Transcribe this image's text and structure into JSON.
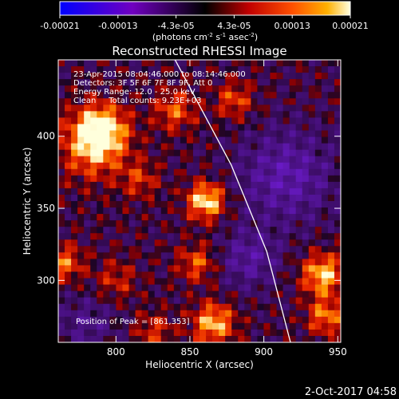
{
  "chart_data": {
    "type": "heatmap",
    "title": "Reconstructed RHESSI Image",
    "xlabel": "Heliocentric X (arcsec)",
    "ylabel": "Heliocentric Y (arcsec)",
    "xlim": [
      761,
      952
    ],
    "ylim": [
      257,
      453
    ],
    "x_ticks": [
      800,
      850,
      900,
      950
    ],
    "y_ticks": [
      300,
      350,
      400
    ],
    "colorbar": {
      "ticks": [
        "-0.00021",
        "-0.00013",
        "-4.3e-05",
        "4.3e-05",
        "0.00013",
        "0.00021"
      ],
      "range": [
        -0.00021,
        0.00021
      ],
      "units_label": "(photons cm",
      "units_parts": [
        "(photons cm",
        "-2",
        " s",
        "-1",
        " asec",
        "-2",
        ")"
      ]
    },
    "annotations": [
      "23-Apr-2015 08:04:46.000 to 08:14:46.000",
      "Detectors: 3F 5F 6F 7F 8F 9F, Att 0",
      "Energy Range: 12.0 - 25.0 keV",
      "Clean     Total counts: 9.23E+03"
    ],
    "peak_text": "Position of Peak = [861,353]",
    "peak": [
      861,
      353
    ],
    "limb": [
      [
        840,
        453
      ],
      [
        878,
        380
      ],
      [
        902,
        320
      ],
      [
        918,
        257
      ]
    ],
    "blobs": [
      {
        "x": 861,
        "y": 355,
        "r": 9,
        "v": 0.00021
      },
      {
        "x": 790,
        "y": 405,
        "r": 12,
        "v": 0.00019
      },
      {
        "x": 784,
        "y": 392,
        "r": 16,
        "v": 0.00014
      },
      {
        "x": 840,
        "y": 418,
        "r": 10,
        "v": 0.00012
      },
      {
        "x": 816,
        "y": 370,
        "r": 9,
        "v": 9e-05
      },
      {
        "x": 855,
        "y": 312,
        "r": 9,
        "v": 0.00012
      },
      {
        "x": 866,
        "y": 270,
        "r": 10,
        "v": 0.00018
      },
      {
        "x": 940,
        "y": 304,
        "r": 10,
        "v": 0.00019
      },
      {
        "x": 942,
        "y": 275,
        "r": 9,
        "v": 0.00014
      },
      {
        "x": 765,
        "y": 312,
        "r": 9,
        "v": 0.00013
      },
      {
        "x": 800,
        "y": 300,
        "r": 10,
        "v": 8e-05
      },
      {
        "x": 880,
        "y": 425,
        "r": 9,
        "v": 0.00011
      },
      {
        "x": 826,
        "y": 265,
        "r": 9,
        "v": 9e-05
      },
      {
        "x": 915,
        "y": 372,
        "r": 22,
        "v": -0.00012
      },
      {
        "x": 890,
        "y": 315,
        "r": 14,
        "v": -0.0001
      },
      {
        "x": 780,
        "y": 270,
        "r": 14,
        "v": -7e-05
      }
    ]
  },
  "footer": {
    "timestamp": "2-Oct-2017 04:58"
  }
}
